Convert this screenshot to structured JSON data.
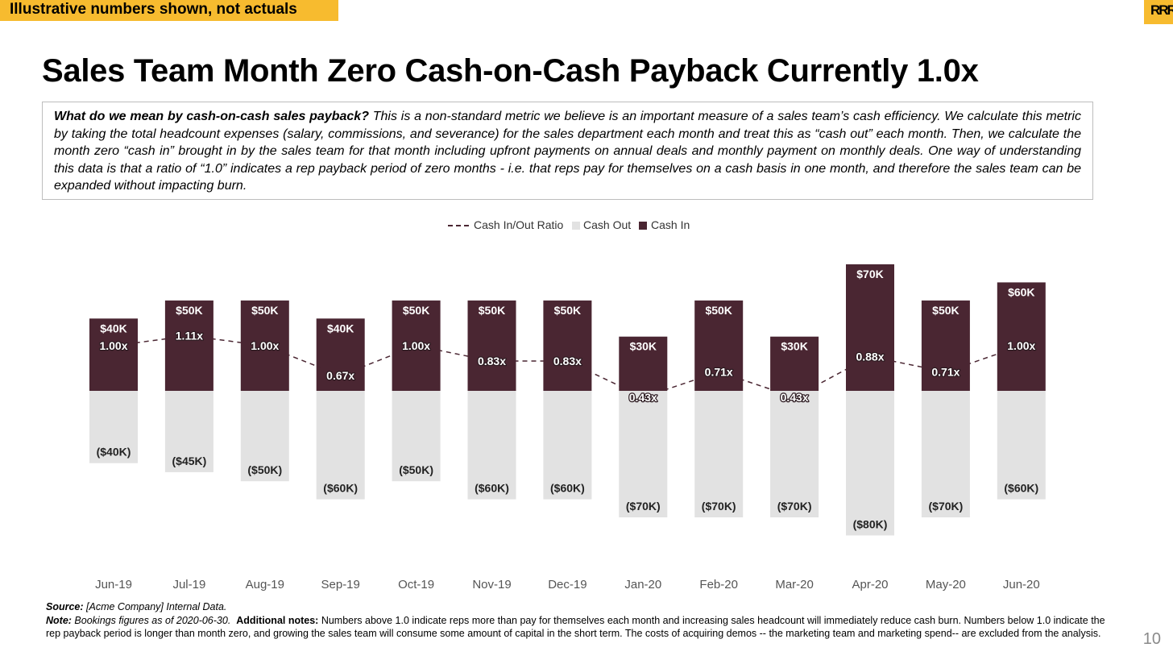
{
  "banner": "Illustrative numbers shown, not actuals",
  "logo_text": "RRR",
  "title": "Sales Team Month Zero Cash-on-Cash Payback Currently 1.0x",
  "definition": {
    "lead": "What do we mean by cash-on-cash sales payback?",
    "body": " This is a non-standard metric we believe is an important measure of a sales team’s cash efficiency. We calculate this metric by taking the total headcount expenses (salary, commissions, and severance) for the sales department each month and treat this as “cash out” each month. Then, we calculate the month zero “cash in” brought in by the sales team for that month including upfront payments on annual deals and monthly payment on monthly deals. One way of understanding this data is that a ratio of “1.0” indicates a rep payback period of zero months - i.e. that reps pay for themselves on a cash basis in one month, and therefore the sales team can be expanded without impacting burn."
  },
  "chart_data": {
    "type": "bar",
    "legend": [
      "Cash In/Out Ratio",
      "Cash Out",
      "Cash In"
    ],
    "legend_position": "top-center",
    "categories": [
      "Jun-19",
      "Jul-19",
      "Aug-19",
      "Sep-19",
      "Oct-19",
      "Nov-19",
      "Dec-19",
      "Jan-20",
      "Feb-20",
      "Mar-20",
      "Apr-20",
      "May-20",
      "Jun-20"
    ],
    "series": [
      {
        "name": "Cash In",
        "values": [
          40,
          50,
          50,
          40,
          50,
          50,
          50,
          30,
          50,
          30,
          70,
          50,
          60
        ],
        "labels": [
          "$40K",
          "$50K",
          "$50K",
          "$40K",
          "$50K",
          "$50K",
          "$50K",
          "$30K",
          "$50K",
          "$30K",
          "$70K",
          "$50K",
          "$60K"
        ]
      },
      {
        "name": "Cash Out",
        "values": [
          -40,
          -45,
          -50,
          -60,
          -50,
          -60,
          -60,
          -70,
          -70,
          -70,
          -80,
          -70,
          -60
        ],
        "labels": [
          "($40K)",
          "($45K)",
          "($50K)",
          "($60K)",
          "($50K)",
          "($60K)",
          "($60K)",
          "($70K)",
          "($70K)",
          "($70K)",
          "($80K)",
          "($70K)",
          "($60K)"
        ]
      },
      {
        "name": "Cash In/Out Ratio",
        "values": [
          1.0,
          1.11,
          1.0,
          0.67,
          1.0,
          0.83,
          0.83,
          0.43,
          0.71,
          0.43,
          0.88,
          0.71,
          1.0
        ],
        "labels": [
          "1.00x",
          "1.11x",
          "1.00x",
          "0.67x",
          "1.00x",
          "0.83x",
          "0.83x",
          "0.43x",
          "0.71x",
          "0.43x",
          "0.88x",
          "0.71x",
          "1.00x"
        ]
      }
    ],
    "colors": {
      "cash_in": "#4a2632",
      "cash_out": "#e2e2e2",
      "ratio": "#4a2632"
    },
    "units": "$K",
    "grid": false
  },
  "footer": {
    "source_label": "Source:",
    "source_text": " [Acme Company] Internal Data.",
    "note_label": "Note:",
    "note_text": " Bookings figures as of 2020-06-30.",
    "additional_label": "Additional notes:",
    "additional_text": " Numbers above 1.0 indicate reps more than pay for themselves each month and increasing sales headcount will immediately reduce cash burn. Numbers below 1.0 indicate the rep payback period is longer than month zero, and growing the sales team will consume some amount of capital in the short term. The costs of acquiring demos -- the marketing team and marketing spend-- are excluded from the analysis."
  },
  "page_number": "10"
}
